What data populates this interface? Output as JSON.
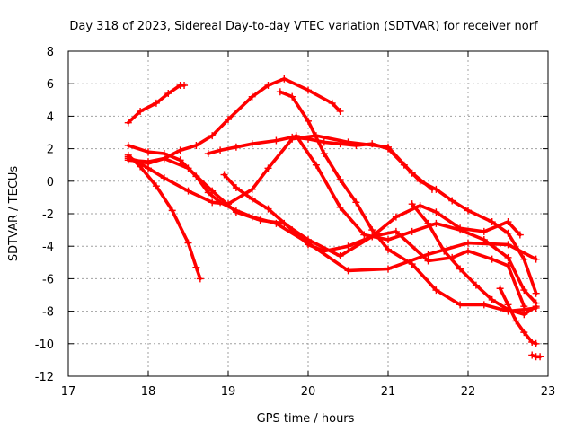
{
  "chart_data": {
    "type": "line",
    "title": "Day 318 of 2023, Sidereal Day-to-day VTEC variation (SDTVAR) for receiver norf",
    "xlabel": "GPS time / hours",
    "ylabel": "SDTVAR / TECUs",
    "xlim": [
      17,
      23
    ],
    "ylim": [
      -12,
      8
    ],
    "xticks": [
      17,
      18,
      19,
      20,
      21,
      22,
      23
    ],
    "yticks": [
      -12,
      -10,
      -8,
      -6,
      -4,
      -2,
      0,
      2,
      4,
      6,
      8
    ],
    "grid": true,
    "legend": "none",
    "marker": "plus",
    "series_color": "#ff0000",
    "series": [
      {
        "name": "track-1",
        "x": [
          17.75,
          17.9,
          18.1,
          18.25,
          18.4,
          18.45
        ],
        "y": [
          3.6,
          4.3,
          4.8,
          5.4,
          5.9,
          5.9
        ]
      },
      {
        "name": "track-2",
        "x": [
          17.75,
          17.9,
          18.1,
          18.3,
          18.5,
          18.6,
          18.65
        ],
        "y": [
          1.6,
          0.9,
          -0.3,
          -1.8,
          -3.8,
          -5.3,
          -6.0
        ]
      },
      {
        "name": "track-3",
        "x": [
          17.75,
          18.0,
          18.2,
          18.4,
          18.6,
          18.75,
          18.9,
          19.1,
          19.3,
          19.6,
          20.0,
          20.5,
          21.0,
          21.5,
          22.0,
          22.5,
          22.85
        ],
        "y": [
          2.2,
          1.8,
          1.7,
          1.3,
          0.3,
          -0.7,
          -1.3,
          -1.8,
          -2.2,
          -2.6,
          -3.8,
          -5.5,
          -5.4,
          -4.5,
          -3.8,
          -3.9,
          -4.8
        ]
      },
      {
        "name": "track-4",
        "x": [
          17.75,
          18.0,
          18.2,
          18.4,
          18.6,
          18.8,
          19.0,
          19.3,
          19.5,
          19.7,
          20.0,
          20.3,
          20.4
        ],
        "y": [
          1.4,
          1.1,
          1.4,
          1.9,
          2.2,
          2.8,
          3.8,
          5.2,
          5.9,
          6.3,
          5.6,
          4.8,
          4.3
        ]
      },
      {
        "name": "track-5",
        "x": [
          17.75,
          18.0,
          18.2,
          18.5,
          18.8,
          19.0,
          19.3,
          19.5,
          19.8,
          20.1,
          20.5,
          21.0,
          21.3,
          21.55
        ],
        "y": [
          1.5,
          0.8,
          0.2,
          -0.6,
          -1.3,
          -1.4,
          -0.5,
          0.8,
          2.6,
          2.8,
          2.4,
          2.1,
          0.5,
          -0.5
        ]
      },
      {
        "name": "track-6",
        "x": [
          17.75,
          18.0,
          18.2,
          18.5,
          18.8,
          19.1,
          19.4,
          19.7,
          20.0,
          20.4,
          20.8,
          21.1,
          21.5,
          21.8,
          22.0,
          22.3,
          22.5,
          22.7
        ],
        "y": [
          1.3,
          1.2,
          1.4,
          0.8,
          -0.6,
          -1.9,
          -2.4,
          -2.6,
          -3.6,
          -4.6,
          -3.4,
          -3.1,
          -4.9,
          -4.7,
          -4.3,
          -4.8,
          -5.2,
          -7.7
        ]
      },
      {
        "name": "track-7",
        "x": [
          18.75,
          18.9,
          19.1,
          19.3,
          19.6,
          19.8,
          20.0,
          20.2,
          20.4,
          20.6,
          20.8,
          21.0,
          21.2,
          21.4,
          21.6,
          21.8,
          22.0,
          22.3,
          22.5,
          22.7,
          22.85
        ],
        "y": [
          1.7,
          1.9,
          2.1,
          2.3,
          2.5,
          2.7,
          2.6,
          2.4,
          2.3,
          2.2,
          2.3,
          2.0,
          1.0,
          0.0,
          -0.5,
          -1.2,
          -1.8,
          -2.5,
          -3.2,
          -4.8,
          -6.9
        ]
      },
      {
        "name": "track-8",
        "x": [
          18.95,
          19.1,
          19.3,
          19.5,
          19.8,
          20.0,
          20.2,
          20.5,
          20.8,
          21.1,
          21.4,
          21.6,
          21.9,
          22.2,
          22.5,
          22.65
        ],
        "y": [
          0.4,
          -0.4,
          -1.1,
          -1.7,
          -3.0,
          -3.9,
          -4.3,
          -4.0,
          -3.4,
          -2.2,
          -1.5,
          -1.9,
          -2.9,
          -3.1,
          -2.5,
          -3.3
        ]
      },
      {
        "name": "track-9",
        "x": [
          19.65,
          19.8,
          20.0,
          20.2,
          20.4,
          20.6,
          20.8,
          21.0,
          21.3,
          21.6,
          21.9,
          22.2,
          22.5,
          22.7,
          22.85
        ],
        "y": [
          5.5,
          5.2,
          3.7,
          1.7,
          0.1,
          -1.3,
          -3.0,
          -4.2,
          -5.1,
          -6.7,
          -7.6,
          -7.6,
          -8.0,
          -7.9,
          -7.8
        ]
      },
      {
        "name": "track-10",
        "x": [
          19.85,
          20.1,
          20.4,
          20.7,
          21.0,
          21.3,
          21.6,
          21.9,
          22.2,
          22.5,
          22.7,
          22.85
        ],
        "y": [
          2.8,
          1.0,
          -1.6,
          -3.3,
          -3.6,
          -3.1,
          -2.6,
          -3.0,
          -3.6,
          -4.7,
          -6.7,
          -7.5
        ]
      },
      {
        "name": "track-11",
        "x": [
          21.3,
          21.5,
          21.7,
          21.9,
          22.1,
          22.3,
          22.5,
          22.7,
          22.85
        ],
        "y": [
          -1.4,
          -2.6,
          -4.3,
          -5.4,
          -6.4,
          -7.3,
          -7.9,
          -8.2,
          -7.7
        ]
      },
      {
        "name": "track-12",
        "x": [
          22.4,
          22.5,
          22.6,
          22.7,
          22.8,
          22.85
        ],
        "y": [
          -6.6,
          -7.6,
          -8.6,
          -9.3,
          -9.9,
          -10.0
        ]
      },
      {
        "name": "track-13",
        "x": [
          22.8,
          22.85,
          22.9
        ],
        "y": [
          -10.7,
          -10.8,
          -10.8
        ]
      }
    ]
  }
}
